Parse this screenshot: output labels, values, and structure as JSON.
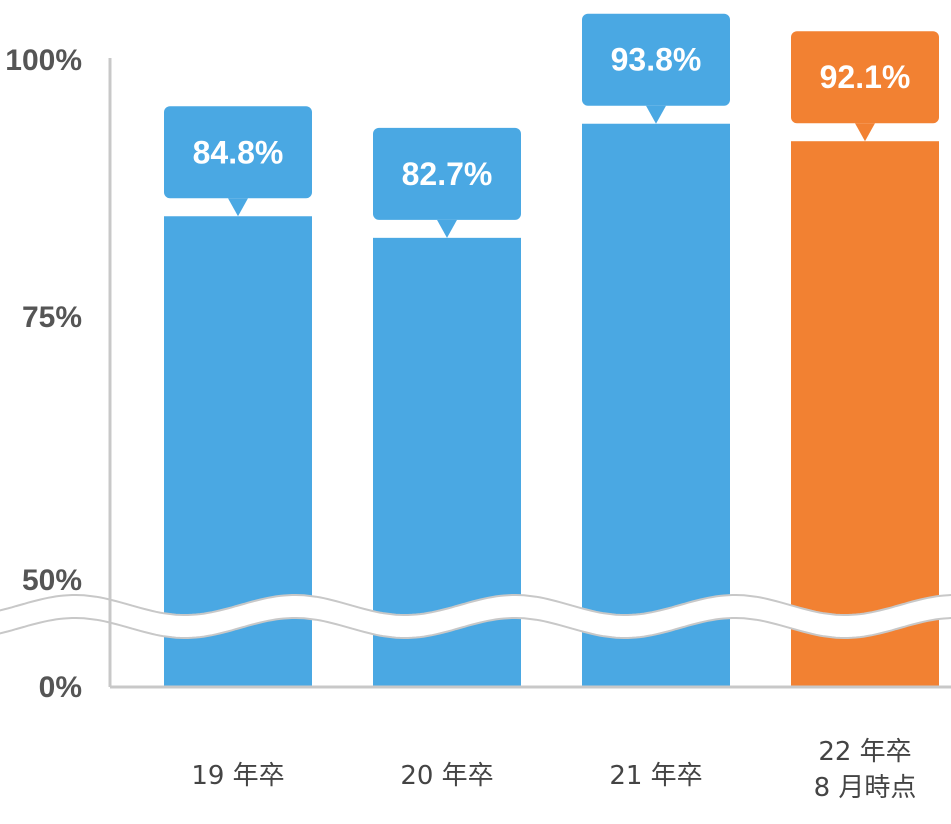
{
  "chart_data": {
    "type": "bar",
    "categories": [
      [
        "19 年卒"
      ],
      [
        "20 年卒"
      ],
      [
        "21 年卒"
      ],
      [
        "22 年卒",
        "8 月時点"
      ]
    ],
    "values": [
      84.8,
      82.7,
      93.8,
      92.1
    ],
    "data_labels": [
      "84.8%",
      "82.7%",
      "93.8%",
      "92.1%"
    ],
    "yticks": [
      {
        "value": 0,
        "label": "0%"
      },
      {
        "value": 50,
        "label": "50%"
      },
      {
        "value": 75,
        "label": "75%"
      },
      {
        "value": 100,
        "label": "100%"
      }
    ],
    "ylim": [
      0,
      100
    ],
    "axis_break": {
      "between": [
        0,
        50
      ]
    },
    "title": "",
    "xlabel": "",
    "ylabel": "",
    "grid": false,
    "legend": "none",
    "colors": {
      "default_bar": "#4aa8e3",
      "highlight_bar": "#f28132",
      "highlight_index": 3,
      "axis": "#c8c8c8"
    }
  }
}
